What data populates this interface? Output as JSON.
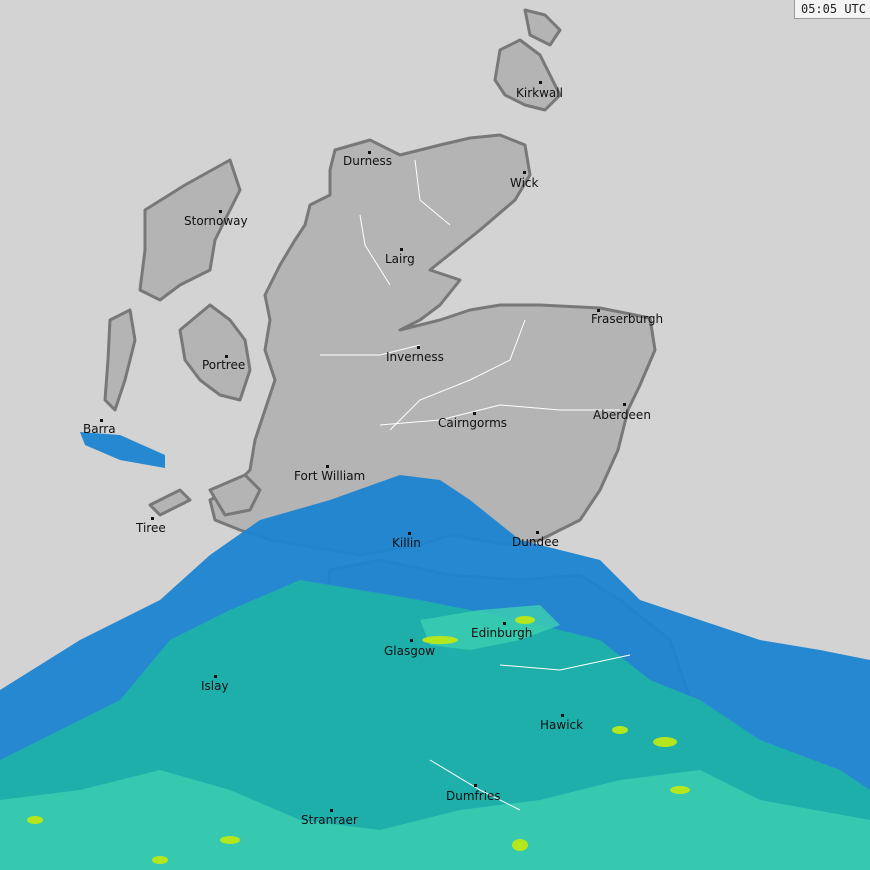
{
  "timestamp": "05:05 UTC",
  "colors": {
    "sea": "#d3d3d3",
    "land": "#b4b4b4",
    "coastline": "#787878",
    "rivers": "#ffffff",
    "rain_light": "#1e84d2",
    "rain_moderate": "#1fb4a6",
    "rain_heavier": "#3ccfb0",
    "rain_heavy": "#b4e61e",
    "rain_very_heavy": "#f0e614"
  },
  "cities": [
    {
      "name": "Kirkwall"
    },
    {
      "name": "Durness"
    },
    {
      "name": "Wick"
    },
    {
      "name": "Stornoway"
    },
    {
      "name": "Lairg"
    },
    {
      "name": "Fraserburgh"
    },
    {
      "name": "Inverness"
    },
    {
      "name": "Portree"
    },
    {
      "name": "Cairngorms"
    },
    {
      "name": "Aberdeen"
    },
    {
      "name": "Barra"
    },
    {
      "name": "Fort William"
    },
    {
      "name": "Tiree"
    },
    {
      "name": "Killin"
    },
    {
      "name": "Dundee"
    },
    {
      "name": "Edinburgh"
    },
    {
      "name": "Glasgow"
    },
    {
      "name": "Islay"
    },
    {
      "name": "Hawick"
    },
    {
      "name": "Dumfries"
    },
    {
      "name": "Stranraer"
    }
  ]
}
